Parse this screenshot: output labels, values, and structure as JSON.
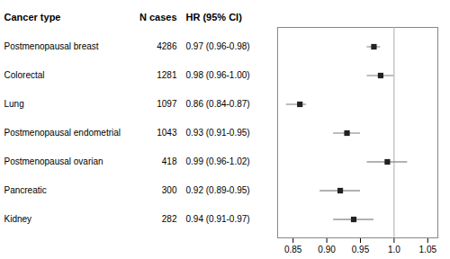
{
  "chart_data": {
    "type": "forest",
    "column_headers": [
      "Cancer type",
      "N cases",
      "HR (95% CI)"
    ],
    "categories": [
      "Postmenopausal breast",
      "Colorectal",
      "Lung",
      "Postmenopausal endometrial",
      "Postmenopausal ovarian",
      "Pancreatic",
      "Kidney"
    ],
    "n_cases": [
      4286,
      1281,
      1097,
      1043,
      418,
      300,
      282
    ],
    "hr_labels": [
      "0.97 (0.96-0.98)",
      "0.98 (0.96-1.00)",
      "0.86 (0.84-0.87)",
      "0.93 (0.91-0.95)",
      "0.99 (0.96-1.02)",
      "0.92 (0.89-0.95)",
      "0.94 (0.91-0.97)"
    ],
    "values": [
      0.97,
      0.98,
      0.86,
      0.93,
      0.99,
      0.92,
      0.94
    ],
    "ci_low": [
      0.96,
      0.96,
      0.84,
      0.91,
      0.96,
      0.89,
      0.91
    ],
    "ci_high": [
      0.98,
      1.0,
      0.87,
      0.95,
      1.02,
      0.95,
      0.97
    ],
    "reference_line": 1.0,
    "xlim": [
      0.827,
      1.065
    ],
    "xticks": [
      0.85,
      {
        "value": 0.9,
        "label": "0.90"
      },
      0.95,
      {
        "value": 1.0,
        "label": "1.0"
      },
      1.05
    ],
    "color": "#222222",
    "ci_color": "#999999",
    "marker": "square",
    "grid": false
  }
}
